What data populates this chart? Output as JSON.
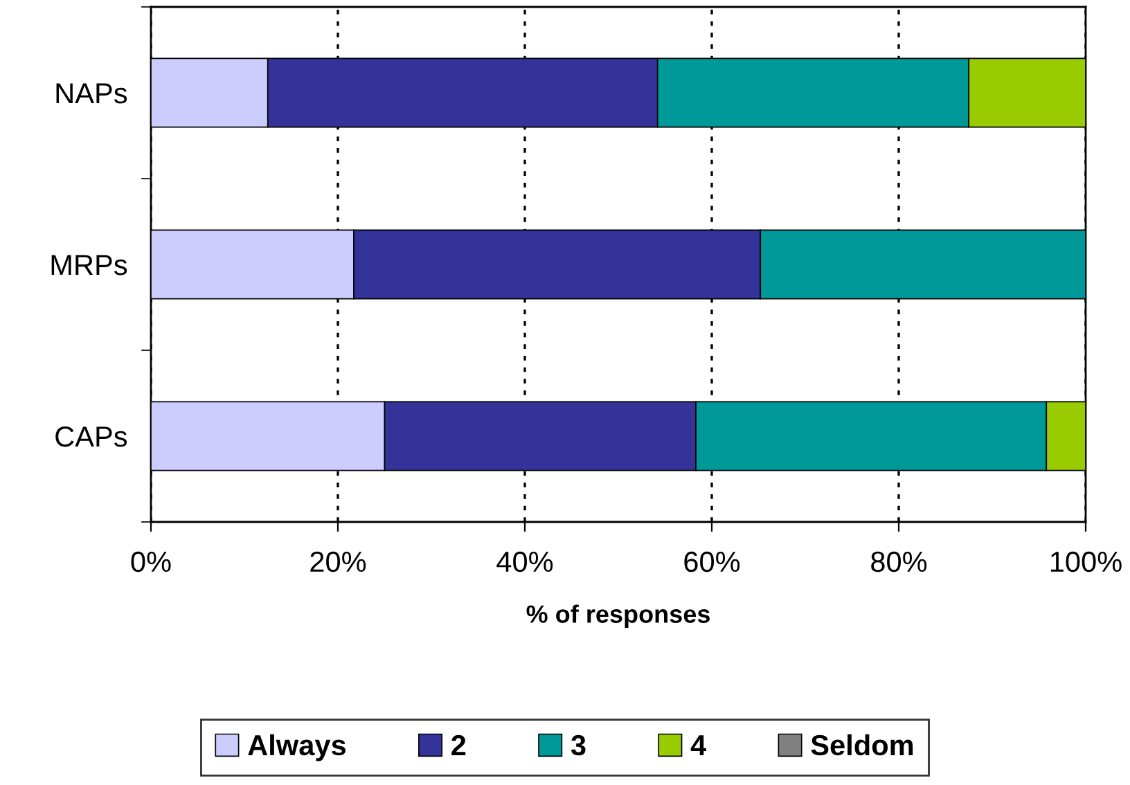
{
  "chart_data": {
    "type": "bar",
    "orientation": "horizontal",
    "stacked": true,
    "categories": [
      "NAPs",
      "MRPs",
      "CAPs"
    ],
    "series": [
      {
        "name": "Always",
        "color": "#ccccff",
        "values": [
          12.5,
          21.7,
          25
        ]
      },
      {
        "name": "2",
        "color": "#333399",
        "values": [
          41.7,
          43.5,
          33.3
        ]
      },
      {
        "name": "3",
        "color": "#009999",
        "values": [
          33.3,
          34.8,
          37.5
        ]
      },
      {
        "name": "4",
        "color": "#99cc00",
        "values": [
          12.5,
          0,
          4.2
        ]
      },
      {
        "name": "Seldom",
        "color": "#808080",
        "values": [
          0,
          0,
          0
        ]
      }
    ],
    "xlabel": "% of responses",
    "xlim": [
      0,
      100
    ],
    "xticks": [
      {
        "value": 0,
        "label": "0%"
      },
      {
        "value": 20,
        "label": "20%"
      },
      {
        "value": 40,
        "label": "40%"
      },
      {
        "value": 60,
        "label": "60%"
      },
      {
        "value": 80,
        "label": "80%"
      },
      {
        "value": 100,
        "label": "100%"
      }
    ],
    "grid": "x",
    "legend": "bottom"
  }
}
